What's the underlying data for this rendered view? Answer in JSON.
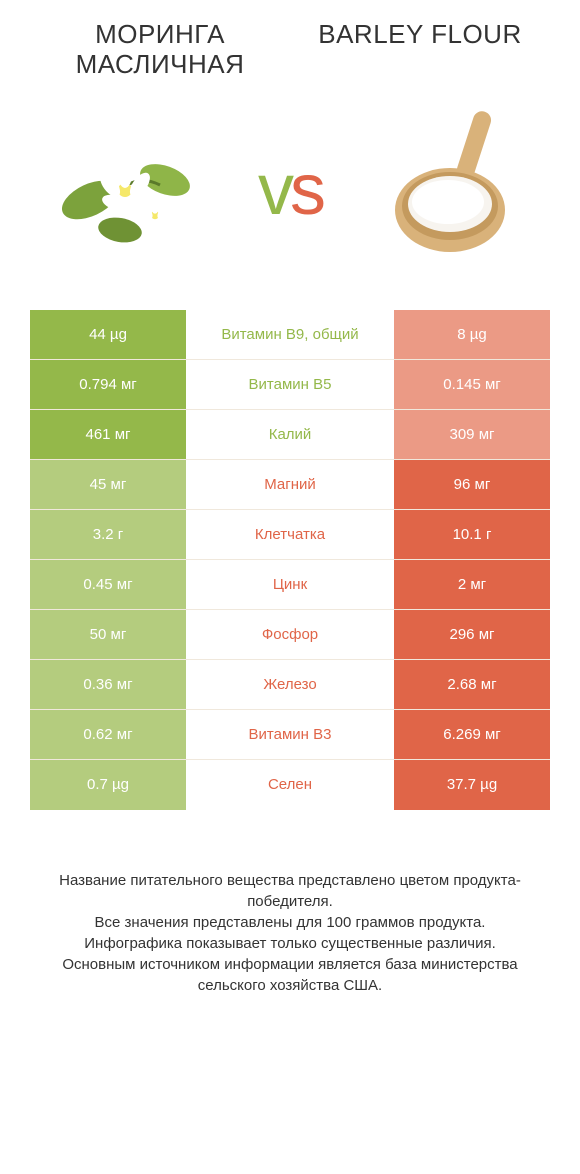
{
  "colors": {
    "left": "#94b84a",
    "right": "#e06548",
    "left_dim": "#b4cc7e",
    "right_dim": "#eb9a85",
    "label_left": "#94b84a",
    "label_right": "#e06548",
    "bg": "#ffffff",
    "row_border": "#f0e8dc"
  },
  "header": {
    "left_title": "Моринга масличная",
    "right_title": "Barley Flour",
    "vs_v": "v",
    "vs_s": "s"
  },
  "rows": [
    {
      "left": "44 µg",
      "label": "Витамин B9, общий",
      "right": "8 µg",
      "winner": "left"
    },
    {
      "left": "0.794 мг",
      "label": "Витамин B5",
      "right": "0.145 мг",
      "winner": "left"
    },
    {
      "left": "461 мг",
      "label": "Калий",
      "right": "309 мг",
      "winner": "left"
    },
    {
      "left": "45 мг",
      "label": "Магний",
      "right": "96 мг",
      "winner": "right"
    },
    {
      "left": "3.2 г",
      "label": "Клетчатка",
      "right": "10.1 г",
      "winner": "right"
    },
    {
      "left": "0.45 мг",
      "label": "Цинк",
      "right": "2 мг",
      "winner": "right"
    },
    {
      "left": "50 мг",
      "label": "Фосфор",
      "right": "296 мг",
      "winner": "right"
    },
    {
      "left": "0.36 мг",
      "label": "Железо",
      "right": "2.68 мг",
      "winner": "right"
    },
    {
      "left": "0.62 мг",
      "label": "Витамин B3",
      "right": "6.269 мг",
      "winner": "right"
    },
    {
      "left": "0.7 µg",
      "label": "Селен",
      "right": "37.7 µg",
      "winner": "right"
    }
  ],
  "footer": {
    "line1": "Название питательного вещества представлено цветом продукта-победителя.",
    "line2": "Все значения представлены для 100 граммов продукта.",
    "line3": "Инфографика показывает только существенные различия.",
    "line4": "Основным источником информации является база министерства сельского хозяйства США."
  }
}
